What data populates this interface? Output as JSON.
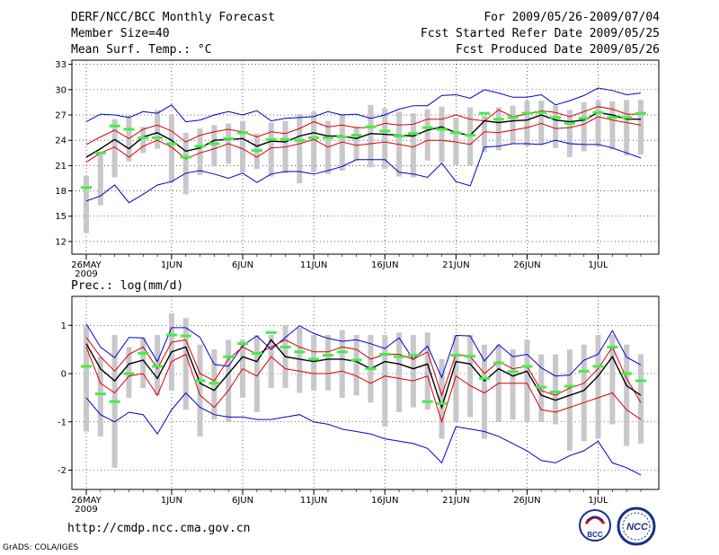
{
  "header": {
    "title": "DERF/NCC/BCC Monthly Forecast",
    "member_size": "Member Size=40",
    "variable": "Mean Surf. Temp.: °C",
    "period": "For 2009/05/26-2009/07/04",
    "refer_date": "Fcst Started Refer Date 2009/05/25",
    "produced_date": "Fcst Produced Date 2009/05/26"
  },
  "footer": {
    "url": "http://cmdp.ncc.cma.gov.cn",
    "credit": "GrADS: COLA/IGES",
    "logo1_text": "BCC",
    "logo2_text": "NCC"
  },
  "colors": {
    "mean": "#000000",
    "spread": "#dd0000",
    "extreme": "#0000cc",
    "box": "#c8c8cc",
    "median": "#44ee44"
  },
  "chart_data": [
    {
      "type": "line",
      "name": "temperature",
      "title": "",
      "ylabel": "Mean Surf. Temp.: °C",
      "ylim": [
        10.5,
        33.5
      ],
      "yticks": [
        12,
        15,
        18,
        21,
        24,
        27,
        30,
        33
      ],
      "grid": true,
      "x_labels": [
        {
          "day": 0,
          "label": "26MAY",
          "sub": "2009"
        },
        {
          "day": 6,
          "label": "1JUN"
        },
        {
          "day": 11,
          "label": "6JUN"
        },
        {
          "day": 16,
          "label": "11JUN"
        },
        {
          "day": 21,
          "label": "16JUN"
        },
        {
          "day": 26,
          "label": "21JUN"
        },
        {
          "day": 31,
          "label": "26JUN"
        },
        {
          "day": 36,
          "label": "1JUL"
        }
      ],
      "days": 40,
      "series": [
        {
          "name": "max",
          "values": [
            26.2,
            27.1,
            27.0,
            26.7,
            27.4,
            27.2,
            28.2,
            26.2,
            26.4,
            27.0,
            27.4,
            27.0,
            27.5,
            26.3,
            26.6,
            26.7,
            26.8,
            27.4,
            27.0,
            27.1,
            26.6,
            27.0,
            27.7,
            28.1,
            28.1,
            29.3,
            29.4,
            29.0,
            30.0,
            29.6,
            29.1,
            29.1,
            29.4,
            28.2,
            28.7,
            29.3,
            30.2,
            29.9,
            29.4,
            29.6
          ]
        },
        {
          "name": "upper",
          "values": [
            23.5,
            24.4,
            25.2,
            24.2,
            25.3,
            25.8,
            25.1,
            23.8,
            24.6,
            25.0,
            25.3,
            25.0,
            24.4,
            25.0,
            24.8,
            25.4,
            26.2,
            25.6,
            25.8,
            25.5,
            25.5,
            26.0,
            25.8,
            25.9,
            26.5,
            26.5,
            27.0,
            26.5,
            26.3,
            27.6,
            26.8,
            27.1,
            27.5,
            27.3,
            26.8,
            27.4,
            28.0,
            27.7,
            27.1,
            27.1
          ]
        },
        {
          "name": "mean",
          "values": [
            22.0,
            23.0,
            24.1,
            23.0,
            24.4,
            24.9,
            24.0,
            22.7,
            23.1,
            24.0,
            24.1,
            24.2,
            23.3,
            23.9,
            23.8,
            24.5,
            24.9,
            24.5,
            24.5,
            24.2,
            24.8,
            24.7,
            24.6,
            24.5,
            25.2,
            25.6,
            24.9,
            24.6,
            26.3,
            26.1,
            26.3,
            26.4,
            27.0,
            26.4,
            26.2,
            26.4,
            27.3,
            27.0,
            26.5,
            26.5
          ]
        },
        {
          "name": "lower",
          "values": [
            21.4,
            22.5,
            23.2,
            22.0,
            23.3,
            24.0,
            23.2,
            21.8,
            22.5,
            23.0,
            23.6,
            23.0,
            22.0,
            23.1,
            23.2,
            23.6,
            24.1,
            23.2,
            23.8,
            23.4,
            23.6,
            23.8,
            23.5,
            23.2,
            24.0,
            24.0,
            23.8,
            23.5,
            25.0,
            24.9,
            25.2,
            25.5,
            26.0,
            25.4,
            25.5,
            25.9,
            26.8,
            26.4,
            26.1,
            25.8
          ]
        },
        {
          "name": "min",
          "values": [
            16.8,
            17.4,
            18.7,
            16.6,
            17.6,
            18.7,
            19.1,
            20.1,
            20.4,
            20.0,
            19.5,
            20.1,
            19.0,
            20.0,
            20.3,
            20.3,
            20.0,
            20.4,
            20.9,
            21.7,
            21.7,
            21.7,
            20.2,
            20.0,
            19.6,
            21.3,
            19.1,
            18.6,
            23.2,
            23.3,
            23.6,
            23.6,
            23.5,
            24.0,
            23.6,
            23.5,
            23.5,
            23.1,
            22.5,
            21.9
          ]
        }
      ],
      "boxes": {
        "low": [
          13.0,
          16.3,
          19.6,
          21.5,
          22.5,
          23.0,
          19.0,
          17.6,
          19.9,
          20.9,
          21.2,
          20.2,
          20.6,
          19.7,
          20.1,
          18.9,
          20.3,
          20.0,
          20.4,
          21.6,
          20.8,
          20.6,
          19.7,
          19.6,
          21.6,
          21.4,
          21.1,
          21.0,
          22.6,
          22.8,
          23.6,
          23.3,
          23.5,
          23.1,
          22.0,
          22.7,
          23.3,
          22.9,
          22.2,
          22.3
        ],
        "high": [
          19.8,
          22.5,
          26.5,
          26.9,
          25.6,
          27.6,
          27.1,
          24.9,
          25.4,
          25.8,
          26.0,
          26.3,
          24.8,
          26.1,
          26.3,
          27.1,
          27.4,
          26.3,
          27.1,
          25.6,
          28.2,
          27.8,
          27.4,
          27.2,
          27.7,
          28.0,
          26.7,
          27.9,
          26.9,
          27.9,
          28.1,
          28.7,
          28.7,
          28.1,
          27.6,
          28.5,
          28.7,
          28.6,
          28.8,
          28.8
        ],
        "median": [
          18.4,
          22.5,
          25.7,
          25.3,
          24.3,
          24.3,
          23.6,
          22.0,
          23.3,
          23.6,
          24.2,
          24.9,
          22.8,
          24.1,
          24.1,
          24.0,
          24.3,
          24.3,
          24.4,
          24.6,
          25.6,
          25.1,
          24.5,
          24.8,
          25.5,
          25.3,
          24.9,
          24.6,
          27.2,
          26.5,
          26.7,
          27.2,
          27.3,
          26.7,
          26.0,
          26.6,
          27.3,
          26.7,
          26.7,
          27.2
        ]
      }
    },
    {
      "type": "line",
      "name": "precipitation",
      "title": "",
      "ylabel": "Prec.: log(mm/d)",
      "ylim": [
        -2.4,
        1.6
      ],
      "yticks": [
        -2,
        -1,
        0,
        1
      ],
      "grid": true,
      "x_labels": [
        {
          "day": 0,
          "label": "26MAY",
          "sub": "2009"
        },
        {
          "day": 6,
          "label": "1JUN"
        },
        {
          "day": 11,
          "label": "6JUN"
        },
        {
          "day": 16,
          "label": "11JUN"
        },
        {
          "day": 21,
          "label": "16JUN"
        },
        {
          "day": 26,
          "label": "21JUN"
        },
        {
          "day": 31,
          "label": "26JUN"
        },
        {
          "day": 36,
          "label": "1JUL"
        }
      ],
      "days": 40,
      "series": [
        {
          "name": "max",
          "values": [
            1.03,
            0.55,
            0.33,
            0.75,
            0.74,
            0.25,
            0.95,
            0.95,
            0.75,
            0.19,
            0.15,
            0.58,
            0.78,
            0.5,
            0.75,
            0.99,
            0.83,
            0.73,
            0.67,
            0.7,
            0.62,
            0.52,
            0.74,
            0.29,
            0.57,
            -0.08,
            0.79,
            0.78,
            0.26,
            0.6,
            0.35,
            0.4,
            0.12,
            -0.05,
            -0.03,
            0.28,
            0.4,
            0.89,
            0.34,
            0.18
          ]
        },
        {
          "name": "upper",
          "values": [
            0.75,
            0.35,
            0.05,
            0.4,
            0.55,
            0.1,
            0.65,
            0.7,
            0.0,
            -0.15,
            0.3,
            0.55,
            0.4,
            0.55,
            0.7,
            0.55,
            0.45,
            0.45,
            0.55,
            0.5,
            0.3,
            0.4,
            0.4,
            0.3,
            0.45,
            -0.45,
            0.4,
            0.35,
            0.0,
            0.25,
            0.1,
            0.15,
            -0.35,
            -0.45,
            -0.3,
            -0.2,
            0.1,
            0.55,
            -0.1,
            -0.6
          ]
        },
        {
          "name": "mean",
          "values": [
            0.62,
            0.1,
            -0.15,
            0.2,
            0.28,
            -0.1,
            0.45,
            0.55,
            -0.2,
            -0.35,
            0.0,
            0.35,
            0.25,
            0.7,
            0.35,
            0.3,
            0.25,
            0.3,
            0.3,
            0.25,
            0.1,
            0.25,
            0.2,
            0.1,
            0.2,
            -0.7,
            0.25,
            0.2,
            -0.15,
            0.1,
            -0.05,
            0.05,
            -0.45,
            -0.55,
            -0.45,
            -0.35,
            -0.05,
            0.35,
            -0.25,
            -0.45
          ]
        },
        {
          "name": "lower",
          "values": [
            0.55,
            -0.2,
            -0.4,
            -0.05,
            0.0,
            -0.45,
            0.25,
            0.4,
            -0.45,
            -0.7,
            -0.35,
            0.1,
            -0.05,
            0.35,
            0.1,
            0.05,
            0.0,
            0.0,
            0.05,
            -0.05,
            -0.2,
            -0.05,
            -0.1,
            -0.15,
            -0.05,
            -1.0,
            -0.05,
            -0.25,
            -0.4,
            -0.2,
            -0.2,
            -0.2,
            -0.75,
            -0.8,
            -0.7,
            -0.6,
            -0.5,
            -0.4,
            -0.75,
            -0.95
          ]
        },
        {
          "name": "min",
          "values": [
            -0.5,
            -0.85,
            -1.0,
            -0.8,
            -0.85,
            -1.25,
            -0.75,
            -0.4,
            -0.7,
            -0.85,
            -0.9,
            -0.9,
            -0.95,
            -0.95,
            -0.9,
            -0.85,
            -1.0,
            -1.05,
            -1.15,
            -1.2,
            -1.25,
            -1.35,
            -1.4,
            -1.45,
            -1.55,
            -1.85,
            -1.1,
            -1.15,
            -1.2,
            -1.3,
            -1.45,
            -1.6,
            -1.8,
            -1.85,
            -1.7,
            -1.6,
            -1.4,
            -1.85,
            -1.95,
            -2.1
          ]
        }
      ],
      "boxes": {
        "low": [
          -1.2,
          -1.3,
          -1.95,
          -0.5,
          -0.3,
          -0.45,
          -0.35,
          -0.75,
          -1.3,
          -0.95,
          -1.0,
          -0.5,
          -0.8,
          -0.3,
          -0.3,
          -0.4,
          -0.35,
          -0.35,
          -0.5,
          -0.45,
          -0.6,
          -1.1,
          -0.8,
          -0.7,
          -0.75,
          -1.35,
          -1.0,
          -0.9,
          -1.35,
          -1.0,
          -0.95,
          -1.0,
          -1.0,
          -1.05,
          -1.6,
          -1.4,
          -1.35,
          -1.05,
          -1.5,
          -1.45
        ],
        "high": [
          1.0,
          0.35,
          0.8,
          0.55,
          0.75,
          0.8,
          1.25,
          1.15,
          0.6,
          0.5,
          0.7,
          0.7,
          0.8,
          0.8,
          1.0,
          0.95,
          0.8,
          0.8,
          0.9,
          0.8,
          0.8,
          0.8,
          0.85,
          0.8,
          0.85,
          0.3,
          0.8,
          0.8,
          0.6,
          0.6,
          0.5,
          0.7,
          0.4,
          0.4,
          0.5,
          0.6,
          0.8,
          0.8,
          0.6,
          0.4
        ],
        "median": [
          0.15,
          -0.42,
          -0.58,
          0.0,
          0.42,
          0.15,
          0.8,
          0.78,
          -0.15,
          -0.2,
          0.35,
          0.62,
          0.42,
          0.85,
          0.55,
          0.45,
          0.3,
          0.38,
          0.45,
          0.28,
          0.1,
          0.4,
          0.35,
          0.38,
          -0.58,
          -0.62,
          0.38,
          0.36,
          -0.1,
          0.22,
          0.04,
          0.15,
          -0.28,
          -0.38,
          -0.26,
          0.05,
          0.15,
          0.55,
          0.0,
          -0.15
        ]
      }
    }
  ]
}
